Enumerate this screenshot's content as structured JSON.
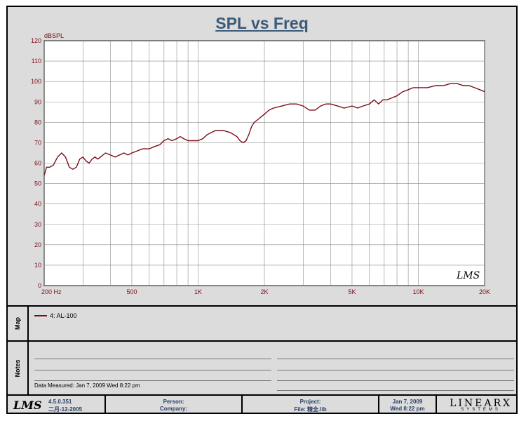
{
  "chart_data": {
    "type": "line",
    "title": "SPL vs Freq",
    "ylabel": "dBSPL",
    "xlabel": "",
    "x_scale": "log",
    "xlim": [
      200,
      20000
    ],
    "ylim": [
      0,
      120
    ],
    "y_ticks": [
      0,
      10,
      20,
      30,
      40,
      50,
      60,
      70,
      80,
      90,
      100,
      110,
      120
    ],
    "x_tick_labels": [
      {
        "value": 200,
        "label": "200  Hz"
      },
      {
        "value": 500,
        "label": "500"
      },
      {
        "value": 1000,
        "label": "1K"
      },
      {
        "value": 2000,
        "label": "2K"
      },
      {
        "value": 5000,
        "label": "5K"
      },
      {
        "value": 10000,
        "label": "10K"
      },
      {
        "value": 20000,
        "label": "20K"
      }
    ],
    "grid": true,
    "watermark": "LMS",
    "series": [
      {
        "name": "4: AL-100",
        "color": "#7a0e18",
        "x": [
          200,
          205,
          212,
          220,
          230,
          240,
          250,
          260,
          270,
          280,
          290,
          300,
          310,
          320,
          330,
          340,
          350,
          360,
          380,
          400,
          420,
          440,
          460,
          480,
          500,
          530,
          560,
          600,
          630,
          670,
          700,
          730,
          760,
          800,
          830,
          860,
          900,
          950,
          1000,
          1050,
          1100,
          1150,
          1200,
          1300,
          1400,
          1500,
          1550,
          1600,
          1650,
          1700,
          1750,
          1800,
          1900,
          2000,
          2100,
          2200,
          2400,
          2600,
          2800,
          3000,
          3200,
          3400,
          3600,
          3800,
          4000,
          4300,
          4600,
          5000,
          5300,
          5600,
          6000,
          6300,
          6600,
          6900,
          7200,
          7600,
          8000,
          8500,
          9000,
          9500,
          10000,
          10500,
          11000,
          12000,
          13000,
          14000,
          15000,
          16000,
          17000,
          18000,
          19000,
          20000
        ],
        "y": [
          54,
          58,
          58,
          59,
          63,
          65,
          63,
          58,
          57,
          58,
          62,
          63,
          61,
          60,
          62,
          63,
          62,
          63,
          65,
          64,
          63,
          64,
          65,
          64,
          65,
          66,
          67,
          67,
          68,
          69,
          71,
          72,
          71,
          72,
          73,
          72,
          71,
          71,
          71,
          72,
          74,
          75,
          76,
          76,
          75,
          73,
          71,
          70,
          71,
          74,
          78,
          80,
          82,
          84,
          86,
          87,
          88,
          89,
          89,
          88,
          86,
          86,
          88,
          89,
          89,
          88,
          87,
          88,
          87,
          88,
          89,
          91,
          89,
          91,
          91,
          92,
          93,
          95,
          96,
          97,
          97,
          97,
          97,
          98,
          98,
          99,
          99,
          98,
          98,
          97,
          96,
          95
        ]
      }
    ]
  },
  "map": {
    "label": "Map",
    "legend": [
      "4: AL-100"
    ]
  },
  "notes": {
    "label": "Notes",
    "measured": "Data Measured: Jan  7, 2009  Wed  8:22 pm"
  },
  "footer": {
    "logo": "LMS",
    "version": "4.5.0.351",
    "version_date": "二月-12-2005",
    "person_label": "Person:",
    "company_label": "Company:",
    "project_label": "Project:",
    "file_label": "File: 精全.lib",
    "date": "Jan  7, 2009",
    "datetime": "Wed  8:22 pm",
    "brand_big": "LINEARX",
    "brand_small": "SYSTEMS"
  },
  "colors": {
    "curve": "#7a0e18",
    "axis_text": "#7a0e18",
    "title": "#3c5a78",
    "grid": "#8c8c8c"
  }
}
